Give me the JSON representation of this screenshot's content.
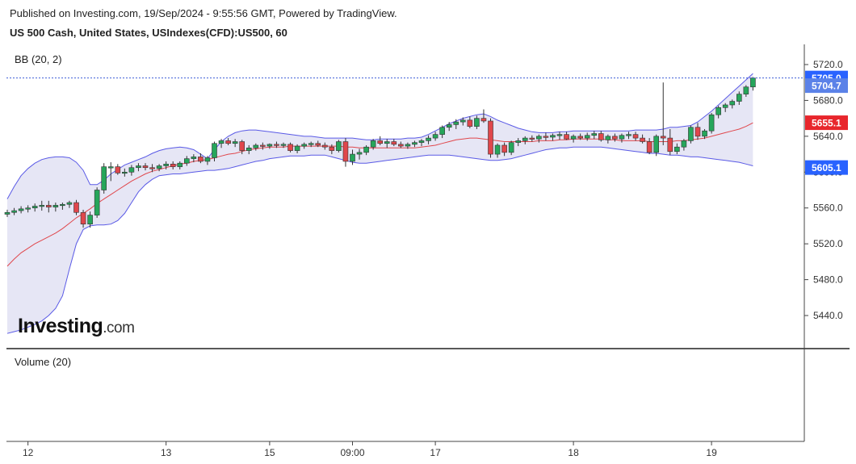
{
  "header": {
    "published_line": "Published on Investing.com, 19/Sep/2024 - 9:55:56 GMT, Powered by TradingView.",
    "instrument_line": "US 500 Cash, United States, USIndexes(CFD):US500, 60"
  },
  "brand": {
    "word": "Investing",
    "suffix": ".com"
  },
  "colors": {
    "up": "#26a65b",
    "down": "#e0474c",
    "band": "#5a5ae6",
    "band_fill": "#e6e6f5",
    "basis": "#e0474c",
    "last_line": "#3f5fd8",
    "badge_blue": "#2962ff",
    "badge_last": "#5b82e8",
    "badge_red": "#e8262c"
  },
  "chart_data": {
    "type": "candlestick",
    "indicator_label": "BB (20, 2)",
    "volume_label": "Volume (20)",
    "y_ticks": [
      "5720.0",
      "5680.0",
      "5640.0",
      "5600.0",
      "5560.0",
      "5520.0",
      "5480.0",
      "5440.0"
    ],
    "y_tick_values": [
      5720,
      5680,
      5640,
      5600,
      5560,
      5520,
      5480,
      5440
    ],
    "ylim": [
      5410,
      5735
    ],
    "x_ticks": [
      {
        "label": "12",
        "index": 3
      },
      {
        "label": "13",
        "index": 23
      },
      {
        "label": "15",
        "index": 38
      },
      {
        "label": "09:00",
        "index": 50
      },
      {
        "label": "17",
        "index": 62
      },
      {
        "label": "18",
        "index": 82
      },
      {
        "label": "19",
        "index": 102
      }
    ],
    "last_price": 5705.0,
    "price_badges": [
      {
        "label": "5705.0",
        "value": 5705.0,
        "style": "blue"
      },
      {
        "label": "5704.7",
        "value": 5696.5,
        "style": "last"
      },
      {
        "label": "5655.1",
        "value": 5655.1,
        "style": "red"
      },
      {
        "label": "5605.1",
        "value": 5605.1,
        "style": "blue"
      }
    ],
    "candles": [
      [
        5553,
        5558,
        5550,
        5555
      ],
      [
        5555,
        5560,
        5552,
        5557
      ],
      [
        5557,
        5562,
        5554,
        5559
      ],
      [
        5559,
        5563,
        5555,
        5560
      ],
      [
        5560,
        5565,
        5556,
        5562
      ],
      [
        5562,
        5568,
        5557,
        5563
      ],
      [
        5563,
        5568,
        5555,
        5561
      ],
      [
        5561,
        5566,
        5556,
        5563
      ],
      [
        5563,
        5566,
        5558,
        5564
      ],
      [
        5564,
        5568,
        5560,
        5566
      ],
      [
        5566,
        5569,
        5552,
        5555
      ],
      [
        5555,
        5558,
        5538,
        5542
      ],
      [
        5542,
        5556,
        5538,
        5552
      ],
      [
        5552,
        5583,
        5549,
        5580
      ],
      [
        5580,
        5610,
        5576,
        5606
      ],
      [
        5606,
        5611,
        5590,
        5606
      ],
      [
        5606,
        5609,
        5597,
        5599
      ],
      [
        5599,
        5604,
        5595,
        5600
      ],
      [
        5600,
        5608,
        5596,
        5605
      ],
      [
        5605,
        5610,
        5601,
        5607
      ],
      [
        5607,
        5610,
        5602,
        5605
      ],
      [
        5605,
        5609,
        5600,
        5604
      ],
      [
        5604,
        5609,
        5601,
        5607
      ],
      [
        5607,
        5612,
        5603,
        5609
      ],
      [
        5609,
        5612,
        5603,
        5606
      ],
      [
        5606,
        5612,
        5603,
        5610
      ],
      [
        5610,
        5618,
        5607,
        5615
      ],
      [
        5615,
        5620,
        5611,
        5617
      ],
      [
        5617,
        5621,
        5610,
        5612
      ],
      [
        5612,
        5618,
        5608,
        5616
      ],
      [
        5616,
        5634,
        5612,
        5632
      ],
      [
        5632,
        5637,
        5627,
        5635
      ],
      [
        5635,
        5638,
        5630,
        5632
      ],
      [
        5632,
        5637,
        5628,
        5634
      ],
      [
        5634,
        5636,
        5620,
        5624
      ],
      [
        5624,
        5630,
        5620,
        5627
      ],
      [
        5627,
        5632,
        5624,
        5630
      ],
      [
        5630,
        5633,
        5625,
        5629
      ],
      [
        5629,
        5632,
        5626,
        5631
      ],
      [
        5631,
        5634,
        5627,
        5630
      ],
      [
        5630,
        5633,
        5627,
        5631
      ],
      [
        5631,
        5633,
        5622,
        5624
      ],
      [
        5624,
        5631,
        5621,
        5629
      ],
      [
        5629,
        5633,
        5626,
        5631
      ],
      [
        5631,
        5634,
        5628,
        5632
      ],
      [
        5632,
        5635,
        5628,
        5630
      ],
      [
        5630,
        5633,
        5625,
        5628
      ],
      [
        5628,
        5631,
        5620,
        5624
      ],
      [
        5624,
        5636,
        5622,
        5634
      ],
      [
        5634,
        5638,
        5606,
        5612
      ],
      [
        5612,
        5625,
        5608,
        5620
      ],
      [
        5620,
        5626,
        5614,
        5622
      ],
      [
        5622,
        5630,
        5619,
        5628
      ],
      [
        5628,
        5637,
        5625,
        5635
      ],
      [
        5635,
        5640,
        5630,
        5632
      ],
      [
        5632,
        5637,
        5627,
        5634
      ],
      [
        5634,
        5637,
        5629,
        5631
      ],
      [
        5631,
        5634,
        5627,
        5629
      ],
      [
        5629,
        5633,
        5626,
        5631
      ],
      [
        5631,
        5635,
        5628,
        5633
      ],
      [
        5633,
        5637,
        5629,
        5635
      ],
      [
        5635,
        5641,
        5631,
        5638
      ],
      [
        5638,
        5645,
        5635,
        5642
      ],
      [
        5642,
        5652,
        5638,
        5650
      ],
      [
        5650,
        5656,
        5646,
        5653
      ],
      [
        5653,
        5659,
        5648,
        5656
      ],
      [
        5656,
        5661,
        5652,
        5658
      ],
      [
        5658,
        5662,
        5649,
        5651
      ],
      [
        5651,
        5663,
        5648,
        5660
      ],
      [
        5660,
        5670,
        5655,
        5657
      ],
      [
        5657,
        5660,
        5616,
        5620
      ],
      [
        5620,
        5632,
        5616,
        5630
      ],
      [
        5630,
        5633,
        5618,
        5622
      ],
      [
        5622,
        5635,
        5619,
        5633
      ],
      [
        5633,
        5638,
        5629,
        5635
      ],
      [
        5635,
        5640,
        5631,
        5638
      ],
      [
        5638,
        5641,
        5634,
        5637
      ],
      [
        5637,
        5642,
        5633,
        5640
      ],
      [
        5640,
        5644,
        5635,
        5639
      ],
      [
        5639,
        5643,
        5635,
        5641
      ],
      [
        5641,
        5645,
        5636,
        5642
      ],
      [
        5642,
        5645,
        5636,
        5637
      ],
      [
        5637,
        5642,
        5633,
        5640
      ],
      [
        5640,
        5643,
        5636,
        5638
      ],
      [
        5638,
        5644,
        5635,
        5641
      ],
      [
        5641,
        5646,
        5637,
        5643
      ],
      [
        5643,
        5646,
        5634,
        5636
      ],
      [
        5636,
        5642,
        5632,
        5640
      ],
      [
        5640,
        5643,
        5634,
        5637
      ],
      [
        5637,
        5643,
        5633,
        5641
      ],
      [
        5641,
        5645,
        5637,
        5642
      ],
      [
        5642,
        5645,
        5635,
        5638
      ],
      [
        5638,
        5642,
        5632,
        5634
      ],
      [
        5634,
        5638,
        5620,
        5622
      ],
      [
        5622,
        5642,
        5618,
        5640
      ],
      [
        5640,
        5700,
        5630,
        5638
      ],
      [
        5638,
        5648,
        5619,
        5623
      ],
      [
        5623,
        5632,
        5620,
        5628
      ],
      [
        5628,
        5637,
        5624,
        5635
      ],
      [
        5635,
        5652,
        5632,
        5650
      ],
      [
        5650,
        5655,
        5636,
        5640
      ],
      [
        5640,
        5648,
        5637,
        5646
      ],
      [
        5646,
        5666,
        5643,
        5664
      ],
      [
        5664,
        5674,
        5660,
        5672
      ],
      [
        5672,
        5677,
        5667,
        5675
      ],
      [
        5675,
        5681,
        5671,
        5679
      ],
      [
        5679,
        5690,
        5675,
        5687
      ],
      [
        5687,
        5697,
        5684,
        5695
      ],
      [
        5695,
        5706,
        5691,
        5705
      ]
    ],
    "upper_band": [
      5570,
      5584,
      5596,
      5604,
      5610,
      5614,
      5616,
      5617,
      5617,
      5616,
      5611,
      5602,
      5586,
      5586,
      5591,
      5598,
      5603,
      5608,
      5611,
      5614,
      5617,
      5621,
      5624,
      5626,
      5627,
      5628,
      5627,
      5625,
      5620,
      5615,
      5625,
      5634,
      5640,
      5644,
      5646,
      5647,
      5647,
      5646,
      5645,
      5644,
      5643,
      5642,
      5641,
      5640,
      5640,
      5639,
      5638,
      5638,
      5638,
      5638,
      5638,
      5637,
      5636,
      5636,
      5637,
      5637,
      5637,
      5637,
      5638,
      5638,
      5639,
      5642,
      5646,
      5650,
      5654,
      5657,
      5660,
      5662,
      5664,
      5665,
      5662,
      5658,
      5655,
      5652,
      5649,
      5647,
      5645,
      5644,
      5644,
      5644,
      5645,
      5645,
      5646,
      5646,
      5646,
      5646,
      5646,
      5646,
      5646,
      5646,
      5646,
      5647,
      5647,
      5647,
      5647,
      5648,
      5650,
      5650,
      5651,
      5652,
      5656,
      5662,
      5668,
      5675,
      5682,
      5689,
      5696,
      5703,
      5710
    ],
    "lower_band": [
      5420,
      5422,
      5424,
      5427,
      5430,
      5434,
      5440,
      5448,
      5462,
      5492,
      5520,
      5536,
      5540,
      5541,
      5541,
      5542,
      5546,
      5554,
      5566,
      5578,
      5586,
      5592,
      5596,
      5597,
      5598,
      5598,
      5599,
      5600,
      5601,
      5602,
      5602,
      5603,
      5604,
      5606,
      5608,
      5610,
      5612,
      5613,
      5615,
      5616,
      5617,
      5618,
      5618,
      5618,
      5619,
      5619,
      5619,
      5617,
      5615,
      5613,
      5611,
      5610,
      5610,
      5611,
      5612,
      5613,
      5614,
      5615,
      5616,
      5617,
      5618,
      5619,
      5619,
      5619,
      5619,
      5618,
      5617,
      5616,
      5615,
      5614,
      5613,
      5613,
      5614,
      5615,
      5617,
      5619,
      5621,
      5623,
      5625,
      5626,
      5627,
      5627,
      5628,
      5628,
      5628,
      5628,
      5628,
      5627,
      5626,
      5625,
      5624,
      5623,
      5622,
      5621,
      5621,
      5620,
      5619,
      5619,
      5618,
      5617,
      5617,
      5616,
      5615,
      5614,
      5613,
      5612,
      5611,
      5609,
      5607
    ],
    "basis": [
      5495,
      5503,
      5510,
      5515,
      5520,
      5524,
      5528,
      5532,
      5537,
      5543,
      5549,
      5554,
      5559,
      5565,
      5570,
      5575,
      5580,
      5585,
      5590,
      5594,
      5598,
      5601,
      5603,
      5605,
      5607,
      5609,
      5610,
      5612,
      5613,
      5614,
      5616,
      5618,
      5620,
      5621,
      5623,
      5625,
      5626,
      5627,
      5628,
      5628,
      5628,
      5629,
      5629,
      5629,
      5629,
      5629,
      5629,
      5629,
      5629,
      5628,
      5628,
      5627,
      5627,
      5627,
      5627,
      5627,
      5627,
      5627,
      5627,
      5627,
      5628,
      5629,
      5630,
      5632,
      5634,
      5636,
      5637,
      5638,
      5638,
      5637,
      5636,
      5635,
      5634,
      5634,
      5634,
      5634,
      5634,
      5635,
      5635,
      5635,
      5636,
      5636,
      5637,
      5637,
      5637,
      5637,
      5637,
      5636,
      5636,
      5635,
      5635,
      5635,
      5635,
      5634,
      5634,
      5634,
      5634,
      5635,
      5635,
      5636,
      5637,
      5638,
      5640,
      5642,
      5644,
      5646,
      5648,
      5651,
      5655
    ]
  }
}
